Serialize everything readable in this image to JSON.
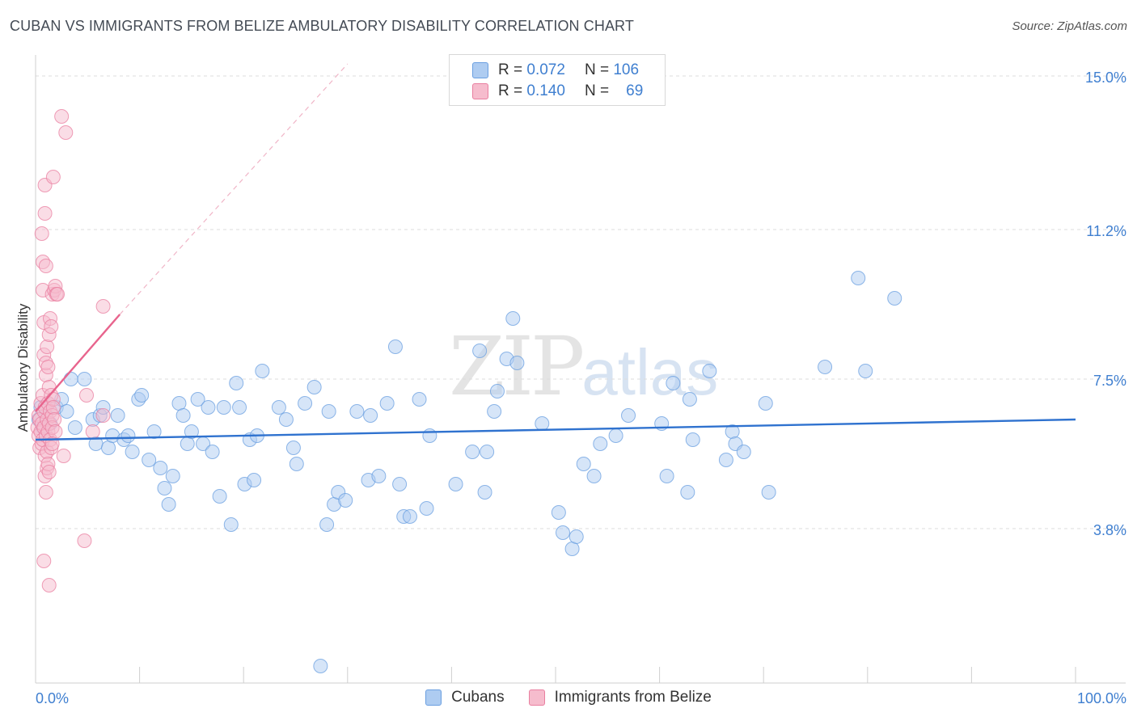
{
  "title": "CUBAN VS IMMIGRANTS FROM BELIZE AMBULATORY DISABILITY CORRELATION CHART",
  "source": "Source: ZipAtlas.com",
  "watermark": {
    "zip": "ZIP",
    "atlas": "atlas"
  },
  "legend": {
    "rows": [
      {
        "r_label": "R =",
        "r_value": "0.072",
        "n_label": "N =",
        "n_value": "106"
      },
      {
        "r_label": "R =",
        "r_value": "0.140",
        "n_label": "N =",
        "n_value": "69"
      }
    ]
  },
  "colors": {
    "blue_fill": "#aeccf1",
    "blue_stroke": "#6a9fe0",
    "blue_line": "#2f72cf",
    "pink_fill": "#f6bccd",
    "pink_stroke": "#e97fa0",
    "pink_line": "#e8648d",
    "tick_text": "#3f7fd0",
    "grid": "#dcdcdc"
  },
  "chart_data": {
    "type": "scatter",
    "title": "CUBAN VS IMMIGRANTS FROM BELIZE AMBULATORY DISABILITY CORRELATION CHART",
    "xlabel": "",
    "ylabel": "Ambulatory Disability",
    "xlim": [
      0,
      100
    ],
    "ylim": [
      0,
      15.4
    ],
    "y_ticks": [
      3.8,
      7.5,
      11.2,
      15.0
    ],
    "y_tick_labels": [
      "3.8%",
      "7.5%",
      "11.2%",
      "15.0%"
    ],
    "x_tick_labels": [
      "0.0%",
      "100.0%"
    ],
    "series": [
      {
        "name": "Cubans",
        "color": "blue",
        "R": 0.072,
        "N": 106,
        "trend": {
          "x": [
            0,
            100
          ],
          "y": [
            6.0,
            6.5
          ]
        },
        "points": [
          [
            0.3,
            6.5
          ],
          [
            0.5,
            6.8
          ],
          [
            0.7,
            6.3
          ],
          [
            1.0,
            6.6
          ],
          [
            1.2,
            6.9
          ],
          [
            1.4,
            6.4
          ],
          [
            2.0,
            6.8
          ],
          [
            2.5,
            7.0
          ],
          [
            3.0,
            6.7
          ],
          [
            3.4,
            7.5
          ],
          [
            3.8,
            6.3
          ],
          [
            4.7,
            7.5
          ],
          [
            5.5,
            6.5
          ],
          [
            5.8,
            5.9
          ],
          [
            6.2,
            6.6
          ],
          [
            6.5,
            6.8
          ],
          [
            7.0,
            5.8
          ],
          [
            7.4,
            6.1
          ],
          [
            7.9,
            6.6
          ],
          [
            8.5,
            6.0
          ],
          [
            8.9,
            6.1
          ],
          [
            9.3,
            5.7
          ],
          [
            9.9,
            7.0
          ],
          [
            10.2,
            7.1
          ],
          [
            10.9,
            5.5
          ],
          [
            11.4,
            6.2
          ],
          [
            12.0,
            5.3
          ],
          [
            12.4,
            4.8
          ],
          [
            12.8,
            4.4
          ],
          [
            13.2,
            5.1
          ],
          [
            13.8,
            6.9
          ],
          [
            14.2,
            6.6
          ],
          [
            14.6,
            5.9
          ],
          [
            15.0,
            6.2
          ],
          [
            15.6,
            7.0
          ],
          [
            16.1,
            5.9
          ],
          [
            16.6,
            6.8
          ],
          [
            17.0,
            5.7
          ],
          [
            17.7,
            4.6
          ],
          [
            18.1,
            6.8
          ],
          [
            18.8,
            3.9
          ],
          [
            19.3,
            7.4
          ],
          [
            19.6,
            6.8
          ],
          [
            20.1,
            4.9
          ],
          [
            20.6,
            6.0
          ],
          [
            21.0,
            5.0
          ],
          [
            21.3,
            6.1
          ],
          [
            21.8,
            7.7
          ],
          [
            23.4,
            6.8
          ],
          [
            24.1,
            6.5
          ],
          [
            24.8,
            5.8
          ],
          [
            25.1,
            5.4
          ],
          [
            25.9,
            6.9
          ],
          [
            26.8,
            7.3
          ],
          [
            27.4,
            0.4
          ],
          [
            28.0,
            3.9
          ],
          [
            28.2,
            6.7
          ],
          [
            28.7,
            4.4
          ],
          [
            29.1,
            4.7
          ],
          [
            29.8,
            4.5
          ],
          [
            30.9,
            6.7
          ],
          [
            32.0,
            5.0
          ],
          [
            32.2,
            6.6
          ],
          [
            33.0,
            5.1
          ],
          [
            33.8,
            6.9
          ],
          [
            34.6,
            8.3
          ],
          [
            35.0,
            4.9
          ],
          [
            35.4,
            4.1
          ],
          [
            36.0,
            4.1
          ],
          [
            36.9,
            7.0
          ],
          [
            37.6,
            4.3
          ],
          [
            37.9,
            6.1
          ],
          [
            40.4,
            4.9
          ],
          [
            42.0,
            5.7
          ],
          [
            42.7,
            8.2
          ],
          [
            43.2,
            4.7
          ],
          [
            43.4,
            5.7
          ],
          [
            44.1,
            6.7
          ],
          [
            44.4,
            7.2
          ],
          [
            45.3,
            8.0
          ],
          [
            45.9,
            9.0
          ],
          [
            46.3,
            7.9
          ],
          [
            48.7,
            6.4
          ],
          [
            50.3,
            4.2
          ],
          [
            50.7,
            3.7
          ],
          [
            51.6,
            3.3
          ],
          [
            52.0,
            3.6
          ],
          [
            52.7,
            5.4
          ],
          [
            53.7,
            5.1
          ],
          [
            54.3,
            5.9
          ],
          [
            55.8,
            6.1
          ],
          [
            57.0,
            6.6
          ],
          [
            60.2,
            6.4
          ],
          [
            60.7,
            5.1
          ],
          [
            61.3,
            7.4
          ],
          [
            62.7,
            4.7
          ],
          [
            62.9,
            7.0
          ],
          [
            63.2,
            6.0
          ],
          [
            64.8,
            7.7
          ],
          [
            66.4,
            5.5
          ],
          [
            67.0,
            6.2
          ],
          [
            67.3,
            5.9
          ],
          [
            68.1,
            5.7
          ],
          [
            70.2,
            6.9
          ],
          [
            70.5,
            4.7
          ],
          [
            75.9,
            7.8
          ],
          [
            79.1,
            10.0
          ],
          [
            79.8,
            7.7
          ],
          [
            82.6,
            9.5
          ]
        ]
      },
      {
        "name": "Immigrants from Belize",
        "color": "pink",
        "R": 0.14,
        "N": 69,
        "trend": {
          "x": [
            0,
            8.1
          ],
          "y": [
            6.7,
            9.1
          ]
        },
        "trend_extension": {
          "x": [
            8.1,
            30.0
          ],
          "y": [
            9.1,
            15.3
          ]
        },
        "points": [
          [
            0.2,
            6.3
          ],
          [
            0.3,
            6.6
          ],
          [
            0.3,
            6.1
          ],
          [
            0.4,
            5.8
          ],
          [
            0.4,
            6.5
          ],
          [
            0.5,
            6.9
          ],
          [
            0.5,
            6.2
          ],
          [
            0.6,
            6.4
          ],
          [
            0.6,
            5.9
          ],
          [
            0.7,
            7.1
          ],
          [
            0.7,
            6.0
          ],
          [
            0.8,
            6.7
          ],
          [
            0.8,
            6.3
          ],
          [
            0.9,
            5.6
          ],
          [
            0.9,
            6.8
          ],
          [
            1.0,
            7.6
          ],
          [
            1.0,
            6.1
          ],
          [
            1.1,
            6.5
          ],
          [
            1.1,
            5.7
          ],
          [
            1.2,
            6.9
          ],
          [
            1.2,
            6.2
          ],
          [
            1.3,
            7.3
          ],
          [
            1.3,
            6.4
          ],
          [
            1.4,
            6.7
          ],
          [
            1.4,
            6.0
          ],
          [
            1.5,
            7.1
          ],
          [
            1.5,
            5.8
          ],
          [
            1.6,
            6.6
          ],
          [
            1.6,
            6.3
          ],
          [
            1.7,
            7.0
          ],
          [
            1.7,
            6.8
          ],
          [
            1.8,
            6.5
          ],
          [
            1.9,
            6.2
          ],
          [
            0.6,
            11.1
          ],
          [
            0.7,
            10.4
          ],
          [
            0.7,
            9.7
          ],
          [
            0.8,
            8.9
          ],
          [
            0.8,
            8.1
          ],
          [
            0.9,
            11.6
          ],
          [
            0.9,
            12.3
          ],
          [
            1.0,
            10.3
          ],
          [
            1.0,
            7.9
          ],
          [
            1.1,
            8.3
          ],
          [
            1.2,
            7.8
          ],
          [
            1.3,
            8.6
          ],
          [
            1.4,
            9.0
          ],
          [
            1.5,
            8.8
          ],
          [
            1.6,
            9.6
          ],
          [
            1.7,
            12.5
          ],
          [
            1.8,
            9.7
          ],
          [
            1.9,
            9.8
          ],
          [
            2.0,
            9.6
          ],
          [
            2.1,
            9.6
          ],
          [
            2.5,
            14.0
          ],
          [
            2.9,
            13.6
          ],
          [
            4.9,
            7.1
          ],
          [
            6.5,
            9.3
          ],
          [
            6.5,
            6.6
          ],
          [
            0.9,
            5.1
          ],
          [
            1.0,
            4.7
          ],
          [
            1.1,
            5.3
          ],
          [
            1.2,
            5.4
          ],
          [
            1.3,
            5.2
          ],
          [
            1.6,
            5.9
          ],
          [
            1.3,
            2.4
          ],
          [
            0.8,
            3.0
          ],
          [
            4.7,
            3.5
          ],
          [
            2.7,
            5.6
          ],
          [
            5.5,
            6.2
          ]
        ]
      }
    ]
  },
  "bottom_legend": [
    {
      "label": "Cubans",
      "color": "blue"
    },
    {
      "label": "Immigrants from Belize",
      "color": "pink"
    }
  ]
}
